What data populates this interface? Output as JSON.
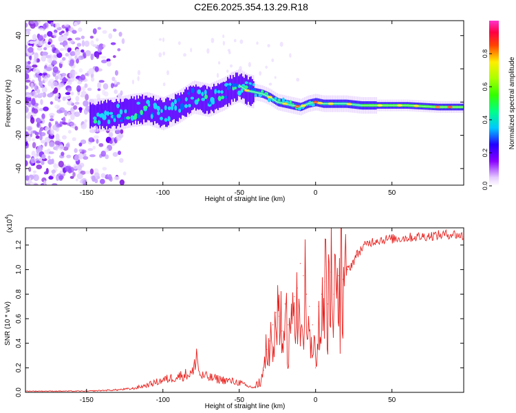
{
  "title": "C2E6.2025.354.13.29.R18",
  "colors": {
    "snr_line": "#e8221f",
    "ridge": "#ffffff",
    "axis": "#000000"
  },
  "chart_data": [
    {
      "type": "heatmap",
      "name": "spectrogram",
      "xlabel": "Height of straight line (km)",
      "ylabel": "Frequency (Hz)",
      "xlim": [
        -190,
        97
      ],
      "ylim": [
        -50,
        49
      ],
      "x_ticks": [
        -150,
        -100,
        -50,
        0,
        50
      ],
      "y_ticks": [
        -40,
        -20,
        0,
        20,
        40
      ],
      "colorbar": {
        "label": "Normalized spectral amplitude",
        "range": [
          0,
          1
        ],
        "ticks": [
          "0.0",
          "0.2",
          "0.4",
          "0.6",
          "0.8"
        ],
        "tick_values": [
          0,
          0.2,
          0.4,
          0.6,
          0.8
        ],
        "colormap": "rainbow (violet-blue-cyan-green-yellow-red-magenta)"
      },
      "ridge_frequency": {
        "x": [
          -145,
          -130,
          -120,
          -110,
          -100,
          -90,
          -80,
          -70,
          -60,
          -55,
          -50,
          -45,
          -40,
          -35,
          -30,
          -25,
          -20,
          -15,
          -10,
          -5,
          0,
          5,
          10,
          20,
          30,
          40,
          60,
          80,
          97
        ],
        "y": [
          -8,
          -7,
          -5,
          -4,
          -7,
          -3,
          3,
          1,
          5,
          8,
          10,
          7,
          6,
          5,
          3,
          0,
          -1,
          -2,
          -3,
          -1,
          0,
          -1,
          -1,
          -1,
          -2,
          -2,
          -2,
          -3,
          -3
        ]
      }
    },
    {
      "type": "line",
      "name": "snr",
      "xlabel": "Height of straight line (km)",
      "ylabel": "SNR (10 * v/v)",
      "y_multiplier": "(x10",
      "y_multiplier_exp": "4",
      "y_multiplier_close": ")",
      "xlim": [
        -190,
        97
      ],
      "ylim": [
        0,
        1.34
      ],
      "x_ticks": [
        -150,
        -100,
        -50,
        0,
        50
      ],
      "y_ticks": [
        0.0,
        0.2,
        0.4,
        0.6,
        0.8,
        1.0,
        1.2
      ],
      "y_tick_labels": [
        "0.0",
        "0.2",
        "0.4",
        "0.6",
        "0.8",
        "1.0",
        "1.2"
      ],
      "series": [
        {
          "name": "SNR",
          "x": [
            -190,
            -170,
            -150,
            -130,
            -120,
            -110,
            -100,
            -90,
            -80,
            -78,
            -76,
            -70,
            -60,
            -50,
            -45,
            -40,
            -37,
            -34,
            -32,
            -30,
            -28,
            -26,
            -24,
            -22,
            -20,
            -18,
            -16,
            -14,
            -12,
            -10,
            -8,
            -6,
            -4,
            -2,
            0,
            2,
            4,
            6,
            8,
            10,
            12,
            15,
            18,
            21,
            24,
            27,
            30,
            35,
            40,
            50,
            60,
            70,
            80,
            90,
            97
          ],
          "values": [
            0.01,
            0.01,
            0.01,
            0.02,
            0.03,
            0.06,
            0.1,
            0.13,
            0.16,
            0.33,
            0.14,
            0.12,
            0.1,
            0.08,
            0.05,
            0.04,
            0.08,
            0.18,
            0.35,
            0.42,
            0.55,
            0.65,
            0.62,
            0.5,
            0.72,
            0.55,
            0.6,
            0.78,
            0.85,
            1.05,
            0.95,
            0.8,
            0.7,
            0.55,
            0.2,
            0.7,
            0.8,
            0.9,
            0.72,
            0.98,
            0.8,
            0.95,
            0.92,
            1.0,
            1.05,
            1.12,
            1.17,
            1.22,
            1.24,
            1.25,
            1.26,
            1.27,
            1.28,
            1.29,
            1.27
          ]
        }
      ]
    }
  ]
}
